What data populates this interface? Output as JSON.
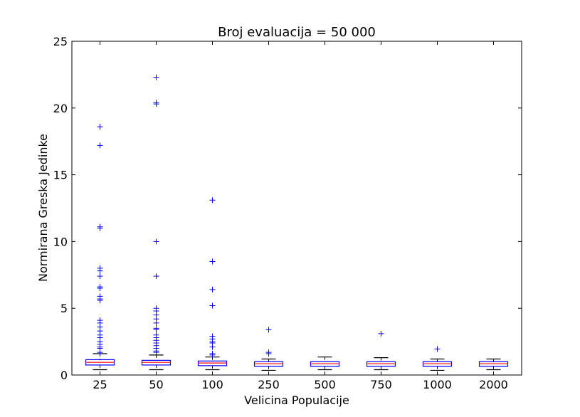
{
  "chart_data": {
    "type": "box",
    "title": "Broj evaluacija = 50 000",
    "xlabel": "Velicina Populacije",
    "ylabel": "Normirana Greska Jedinke",
    "ylim": [
      0,
      25
    ],
    "yticks": [
      0,
      5,
      10,
      15,
      20,
      25
    ],
    "categories": [
      "25",
      "50",
      "100",
      "250",
      "500",
      "750",
      "1000",
      "2000"
    ],
    "boxes": [
      {
        "label": "25",
        "whisker_low": 0.4,
        "q1": 0.75,
        "median": 0.95,
        "q3": 1.15,
        "whisker_high": 1.6,
        "outliers": [
          18.6,
          17.2,
          11.1,
          11.0,
          8.0,
          7.8,
          7.4,
          6.6,
          6.5,
          5.9,
          5.7,
          5.6,
          4.1,
          3.9,
          3.6,
          3.3,
          3.0,
          2.8,
          2.5,
          2.3,
          2.1,
          2.0,
          1.7
        ]
      },
      {
        "label": "50",
        "whisker_low": 0.4,
        "q1": 0.75,
        "median": 0.95,
        "q3": 1.1,
        "whisker_high": 1.5,
        "outliers": [
          22.3,
          20.4,
          20.3,
          10.0,
          7.4,
          5.0,
          4.8,
          4.5,
          4.2,
          3.9,
          3.5,
          3.4,
          3.0,
          2.8,
          2.6,
          2.4,
          2.2,
          2.0,
          1.8,
          1.7
        ]
      },
      {
        "label": "100",
        "whisker_low": 0.4,
        "q1": 0.7,
        "median": 0.9,
        "q3": 1.05,
        "whisker_high": 1.35,
        "outliers": [
          13.1,
          8.5,
          6.4,
          5.2,
          2.9,
          2.7,
          2.5,
          2.4,
          2.1,
          1.6,
          1.5
        ]
      },
      {
        "label": "250",
        "whisker_low": 0.35,
        "q1": 0.65,
        "median": 0.85,
        "q3": 1.0,
        "whisker_high": 1.2,
        "outliers": [
          3.4,
          1.7,
          1.6
        ]
      },
      {
        "label": "500",
        "whisker_low": 0.4,
        "q1": 0.65,
        "median": 0.85,
        "q3": 1.0,
        "whisker_high": 1.35,
        "outliers": []
      },
      {
        "label": "750",
        "whisker_low": 0.4,
        "q1": 0.65,
        "median": 0.85,
        "q3": 1.0,
        "whisker_high": 1.3,
        "outliers": [
          3.1
        ]
      },
      {
        "label": "1000",
        "whisker_low": 0.35,
        "q1": 0.65,
        "median": 0.85,
        "q3": 1.0,
        "whisker_high": 1.2,
        "outliers": [
          1.95
        ]
      },
      {
        "label": "2000",
        "whisker_low": 0.4,
        "q1": 0.65,
        "median": 0.85,
        "q3": 1.0,
        "whisker_high": 1.2,
        "outliers": []
      }
    ],
    "colors": {
      "box": "#0000ff",
      "median": "#ff0000",
      "whisker": "#000000",
      "outlier": "#0000ff"
    },
    "grid": false
  }
}
